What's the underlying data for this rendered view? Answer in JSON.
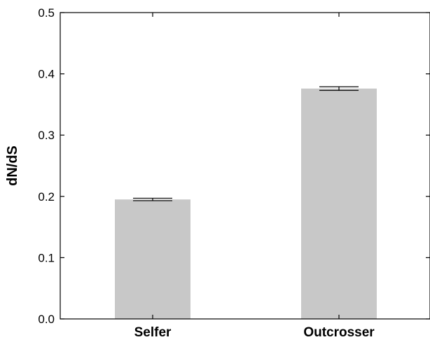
{
  "chart_data": {
    "type": "bar",
    "title": "",
    "xlabel": "",
    "ylabel": "dN/dS",
    "ylim": [
      0,
      0.5
    ],
    "yticks": [
      "0.0",
      "0.1",
      "0.2",
      "0.3",
      "0.4",
      "0.5"
    ],
    "ytick_values": [
      0,
      0.1,
      0.2,
      0.3,
      0.4,
      0.5
    ],
    "categories": [
      "Selfer",
      "Outcrosser"
    ],
    "values": [
      0.195,
      0.376
    ],
    "errors": [
      0.002,
      0.003
    ],
    "grid": false,
    "legend": "none",
    "bar_color": "#c8c8c8",
    "axis_color": "#000000"
  }
}
